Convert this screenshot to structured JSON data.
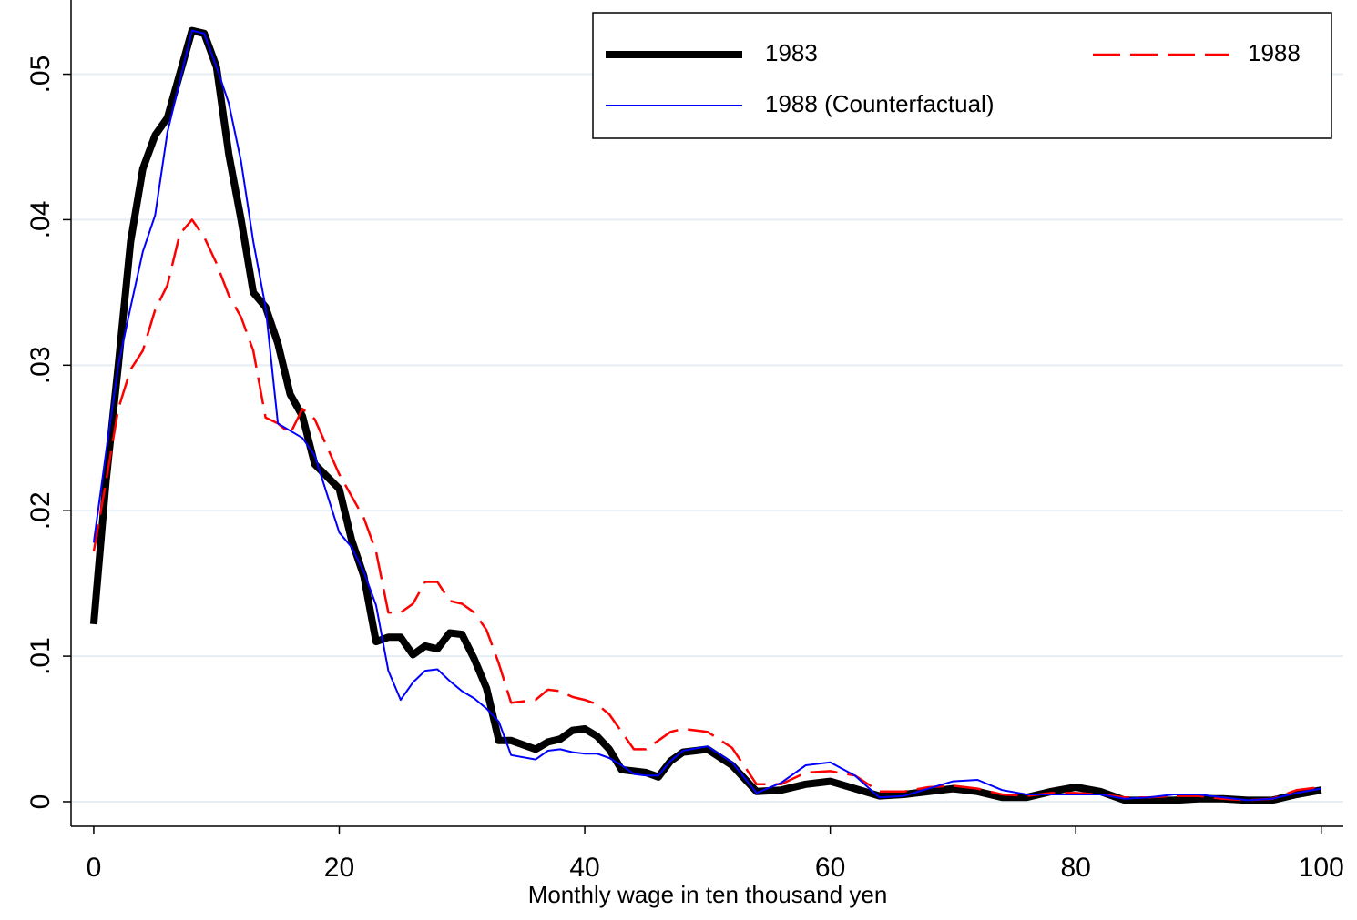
{
  "chart_data": {
    "type": "line",
    "x_label": "Monthly wage in ten thousand yen",
    "x": [
      0,
      1,
      2,
      3,
      4,
      5,
      6,
      7,
      8,
      9,
      10,
      11,
      12,
      13,
      14,
      15,
      16,
      17,
      18,
      20,
      21,
      22,
      23,
      24,
      25,
      26,
      27,
      28,
      29,
      30,
      31,
      32,
      33,
      34,
      36,
      37,
      38,
      39,
      40,
      41,
      42,
      43,
      44,
      45,
      46,
      47,
      48,
      50,
      52,
      54,
      56,
      58,
      60,
      62,
      64,
      66,
      68,
      70,
      72,
      74,
      76,
      78,
      80,
      82,
      84,
      86,
      88,
      90,
      92,
      94,
      96,
      98,
      100
    ],
    "series": [
      {
        "name": "1983",
        "color": "#000000",
        "width": 8,
        "dash": "none",
        "values": [
          0.0122,
          0.022,
          0.03,
          0.0385,
          0.0435,
          0.0458,
          0.047,
          0.05,
          0.053,
          0.0528,
          0.0505,
          0.0445,
          0.04,
          0.035,
          0.034,
          0.0315,
          0.028,
          0.0265,
          0.0232,
          0.0215,
          0.018,
          0.0155,
          0.011,
          0.0113,
          0.0113,
          0.0101,
          0.0107,
          0.0105,
          0.0116,
          0.0115,
          0.0098,
          0.0078,
          0.0042,
          0.0042,
          0.0036,
          0.0041,
          0.0043,
          0.0049,
          0.005,
          0.0045,
          0.0036,
          0.0022,
          0.0021,
          0.002,
          0.0017,
          0.0028,
          0.0034,
          0.0036,
          0.0025,
          0.0007,
          0.0008,
          0.0012,
          0.0014,
          0.0009,
          0.0004,
          0.0005,
          0.0007,
          0.0009,
          0.0007,
          0.0003,
          0.0003,
          0.0007,
          0.001,
          0.0007,
          0.0001,
          0.0001,
          0.0001,
          0.0002,
          0.0002,
          0.0001,
          0.0001,
          0.0005,
          0.0008
        ]
      },
      {
        "name": "1988",
        "color": "#ff0000",
        "width": 2.5,
        "dash": "30 11",
        "values": [
          0.0172,
          0.022,
          0.027,
          0.0297,
          0.031,
          0.0338,
          0.0355,
          0.039,
          0.04,
          0.0388,
          0.037,
          0.0348,
          0.0333,
          0.031,
          0.0264,
          0.026,
          0.0253,
          0.027,
          0.0263,
          0.0225,
          0.021,
          0.0195,
          0.0172,
          0.013,
          0.013,
          0.0136,
          0.0151,
          0.0151,
          0.0138,
          0.0136,
          0.013,
          0.0118,
          0.0095,
          0.0068,
          0.007,
          0.0077,
          0.0076,
          0.0072,
          0.007,
          0.0067,
          0.006,
          0.0048,
          0.0036,
          0.0036,
          0.0042,
          0.0048,
          0.005,
          0.0048,
          0.0037,
          0.0012,
          0.0012,
          0.002,
          0.0021,
          0.0018,
          0.0007,
          0.0007,
          0.001,
          0.0011,
          0.0009,
          0.0005,
          0.0004,
          0.0006,
          0.0006,
          0.0005,
          0.0003,
          0.0003,
          0.0004,
          0.0004,
          0.0002,
          0.0001,
          0.0002,
          0.0008,
          0.001
        ]
      },
      {
        "name": "1988 (Counterfactual)",
        "color": "#0000ff",
        "width": 2,
        "dash": "none",
        "values": [
          0.0178,
          0.024,
          0.03,
          0.034,
          0.0378,
          0.0403,
          0.046,
          0.0495,
          0.053,
          0.0528,
          0.0505,
          0.048,
          0.044,
          0.0385,
          0.034,
          0.026,
          0.0255,
          0.025,
          0.0238,
          0.0185,
          0.0175,
          0.0158,
          0.0135,
          0.009,
          0.007,
          0.0082,
          0.009,
          0.0091,
          0.0083,
          0.0076,
          0.0071,
          0.0064,
          0.0055,
          0.0032,
          0.0029,
          0.0035,
          0.0036,
          0.0034,
          0.0033,
          0.0033,
          0.003,
          0.0025,
          0.0019,
          0.0018,
          0.0018,
          0.0028,
          0.0035,
          0.0038,
          0.0027,
          0.0006,
          0.0013,
          0.0025,
          0.0027,
          0.0018,
          0.0003,
          0.0004,
          0.0009,
          0.0014,
          0.0015,
          0.0008,
          0.0005,
          0.0005,
          0.0005,
          0.0005,
          0.0002,
          0.0003,
          0.0005,
          0.0005,
          0.0003,
          0.0001,
          0.0002,
          0.0006,
          0.0009
        ]
      }
    ],
    "xlim": [
      -1.85,
      101.8
    ],
    "xticks": [
      0,
      20,
      40,
      60,
      80,
      100
    ],
    "ylim": [
      -0.00169,
      0.0551
    ],
    "yticks": [
      0,
      {
        "value": 0.01,
        "label": ".01"
      },
      {
        "value": 0.02,
        "label": ".02"
      },
      {
        "value": 0.03,
        "label": ".03"
      },
      {
        "value": 0.04,
        "label": ".04"
      },
      {
        "value": 0.05,
        "label": ".05"
      }
    ],
    "grid": true,
    "grid_color": "#e6eef3",
    "legend": "top-right"
  }
}
